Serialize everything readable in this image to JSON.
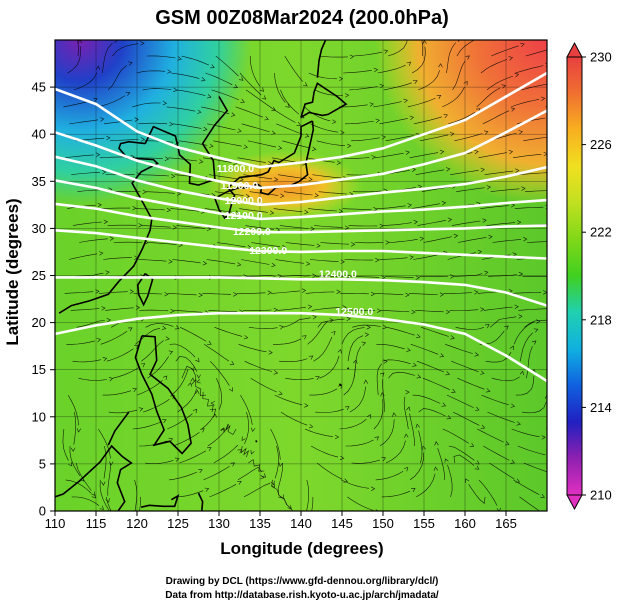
{
  "chart_data": {
    "type": "heatmap",
    "title": "GSM 00Z08Mar2024 (200.0hPa)",
    "xlabel": "Longitude (degrees)",
    "ylabel": "Latitude  (degrees)",
    "xlim": [
      110,
      170
    ],
    "ylim": [
      0,
      50
    ],
    "xticks": [
      "110",
      "115",
      "120",
      "125",
      "130",
      "135",
      "140",
      "145",
      "150",
      "155",
      "160",
      "165"
    ],
    "yticks": [
      "0",
      "5",
      "10",
      "15",
      "20",
      "25",
      "30",
      "35",
      "40",
      "45"
    ],
    "colorbar": {
      "min": 210,
      "max": 230,
      "placement": "right",
      "ticks": [
        "210",
        "214",
        "218",
        "222",
        "226",
        "230"
      ],
      "colors": [
        "#e030c0",
        "#9020b0",
        "#2020c0",
        "#1060e0",
        "#10b0e0",
        "#20d0b0",
        "#40d020",
        "#80d818",
        "#c0e020",
        "#f0e020",
        "#f8b020",
        "#f07030",
        "#e84040"
      ]
    },
    "contour_labels": [
      {
        "text": "11800.0",
        "lon": 132.0,
        "lat": 36.0
      },
      {
        "text": "11900.0",
        "lon": 132.5,
        "lat": 34.2
      },
      {
        "text": "12000.0",
        "lon": 133.0,
        "lat": 32.6
      },
      {
        "text": "12100.0",
        "lon": 133.0,
        "lat": 31.0
      },
      {
        "text": "12200.0",
        "lon": 134.0,
        "lat": 29.3
      },
      {
        "text": "12300.0",
        "lon": 136.0,
        "lat": 27.3
      },
      {
        "text": "12400.0",
        "lon": 144.5,
        "lat": 24.8
      },
      {
        "text": "12500.0",
        "lon": 146.5,
        "lat": 20.8
      }
    ],
    "contours": [
      [
        [
          110,
          44.8
        ],
        [
          115,
          43.2
        ],
        [
          120,
          40.3
        ],
        [
          125,
          38.6
        ],
        [
          130,
          37.5
        ],
        [
          135,
          36.5
        ],
        [
          140,
          37.0
        ],
        [
          145,
          37.6
        ],
        [
          150,
          38.5
        ],
        [
          155,
          40.0
        ],
        [
          160,
          41.5
        ],
        [
          165,
          44.0
        ],
        [
          170,
          46.5
        ]
      ],
      [
        [
          110,
          40.2
        ],
        [
          115,
          38.8
        ],
        [
          120,
          37.2
        ],
        [
          125,
          36.0
        ],
        [
          130,
          35.0
        ],
        [
          135,
          34.3
        ],
        [
          140,
          34.6
        ],
        [
          145,
          35.2
        ],
        [
          150,
          35.8
        ],
        [
          155,
          36.8
        ],
        [
          160,
          38.0
        ],
        [
          165,
          40.2
        ],
        [
          170,
          42.5
        ]
      ],
      [
        [
          110,
          37.6
        ],
        [
          115,
          36.6
        ],
        [
          120,
          35.1
        ],
        [
          125,
          34.0
        ],
        [
          130,
          33.2
        ],
        [
          135,
          32.5
        ],
        [
          140,
          32.8
        ],
        [
          145,
          33.3
        ],
        [
          150,
          33.8
        ],
        [
          155,
          34.2
        ],
        [
          160,
          34.7
        ],
        [
          165,
          35.5
        ],
        [
          170,
          36.5
        ]
      ],
      [
        [
          110,
          35.1
        ],
        [
          115,
          34.3
        ],
        [
          120,
          33.2
        ],
        [
          125,
          32.4
        ],
        [
          130,
          31.6
        ],
        [
          135,
          31.0
        ],
        [
          140,
          31.2
        ],
        [
          145,
          31.5
        ],
        [
          150,
          31.8
        ],
        [
          155,
          32.0
        ],
        [
          160,
          32.3
        ],
        [
          165,
          32.7
        ],
        [
          170,
          33.0
        ]
      ],
      [
        [
          110,
          32.6
        ],
        [
          115,
          32.1
        ],
        [
          120,
          31.3
        ],
        [
          125,
          30.7
        ],
        [
          130,
          30.1
        ],
        [
          135,
          29.6
        ],
        [
          140,
          29.6
        ],
        [
          145,
          29.7
        ],
        [
          150,
          29.8
        ],
        [
          155,
          29.9
        ],
        [
          160,
          30.0
        ],
        [
          165,
          30.2
        ],
        [
          170,
          30.3
        ]
      ],
      [
        [
          110,
          29.8
        ],
        [
          115,
          29.5
        ],
        [
          120,
          29.0
        ],
        [
          125,
          28.5
        ],
        [
          130,
          28.0
        ],
        [
          135,
          27.6
        ],
        [
          140,
          27.5
        ],
        [
          145,
          27.6
        ],
        [
          150,
          27.6
        ],
        [
          155,
          27.4
        ],
        [
          160,
          27.2
        ],
        [
          165,
          27.0
        ],
        [
          170,
          26.8
        ]
      ],
      [
        [
          110,
          24.8
        ],
        [
          115,
          24.8
        ],
        [
          120,
          24.8
        ],
        [
          125,
          24.8
        ],
        [
          130,
          24.8
        ],
        [
          135,
          24.7
        ],
        [
          140,
          24.6
        ],
        [
          145,
          24.6
        ],
        [
          150,
          24.5
        ],
        [
          155,
          24.3
        ],
        [
          160,
          24.0
        ],
        [
          165,
          23.2
        ],
        [
          170,
          21.8
        ]
      ],
      [
        [
          110,
          18.8
        ],
        [
          115,
          19.7
        ],
        [
          120,
          20.4
        ],
        [
          125,
          20.8
        ],
        [
          130,
          21.0
        ],
        [
          135,
          21.0
        ],
        [
          140,
          21.0
        ],
        [
          145,
          20.8
        ],
        [
          150,
          20.4
        ],
        [
          155,
          19.8
        ],
        [
          160,
          18.8
        ],
        [
          165,
          16.5
        ],
        [
          170,
          13.8
        ]
      ]
    ],
    "credits": [
      "Drawing by DCL (https://www.gfd-dennou.org/library/dcl/)",
      "Data from http://database.rish.kyoto-u.ac.jp/arch/jmadata/"
    ]
  }
}
